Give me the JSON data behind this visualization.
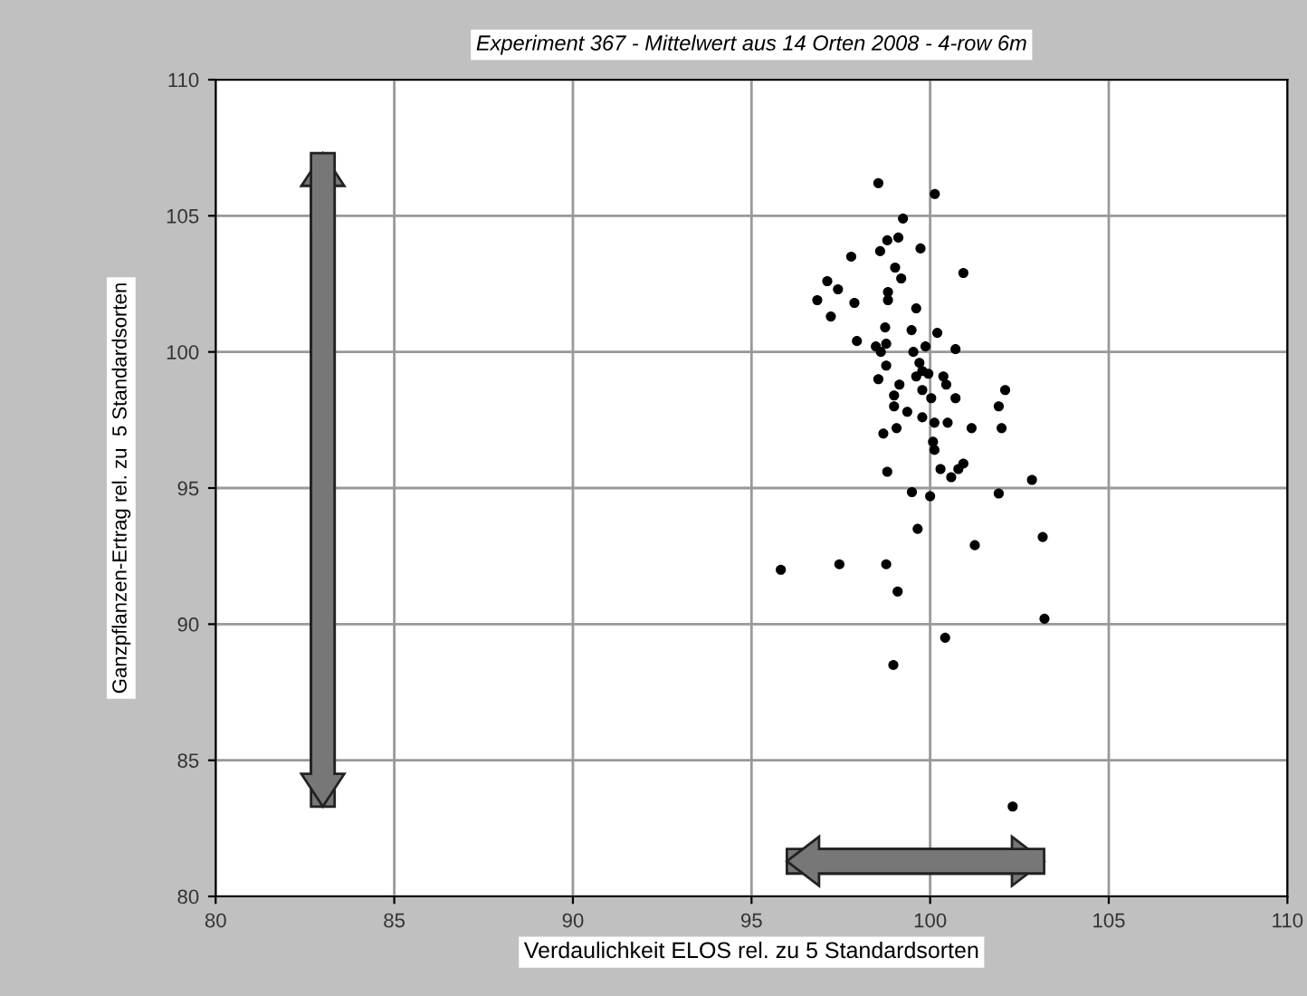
{
  "chart_data": {
    "type": "scatter",
    "title": "Experiment 367 - Mittelwert aus 14 Orten 2008 - 4-row 6m",
    "xlabel": "Verdaulichkeit ELOS rel. zu 5 Standardsorten",
    "ylabel": "Ganzpflanzen-Ertrag rel. zu  5 Standardsorten",
    "xlim": [
      80,
      110
    ],
    "ylim": [
      80,
      110
    ],
    "xticks": [
      80,
      85,
      90,
      95,
      100,
      105,
      110
    ],
    "yticks": [
      80,
      85,
      90,
      95,
      100,
      105,
      110
    ],
    "grid": true,
    "marker": "circle",
    "series": [
      {
        "color": "#000000",
        "x": [
          98.55,
          100.13,
          99.24,
          99.11,
          98.8,
          98.6,
          99.73,
          97.79,
          99.02,
          99.19,
          100.93,
          97.12,
          97.42,
          96.84,
          97.88,
          98.82,
          98.82,
          97.22,
          99.61,
          98.74,
          99.48,
          100.2,
          97.95,
          98.48,
          98.77,
          98.62,
          99.53,
          99.87,
          100.71,
          98.77,
          99.7,
          99.78,
          99.95,
          99.61,
          100.37,
          98.55,
          100.45,
          99.14,
          102.1,
          99.78,
          98.99,
          100.03,
          100.71,
          101.92,
          98.99,
          99.36,
          99.78,
          100.12,
          100.49,
          101.16,
          102.0,
          99.06,
          98.69,
          100.08,
          100.12,
          100.93,
          100.79,
          100.59,
          98.8,
          100.29,
          102.85,
          99.49,
          100.0,
          101.92,
          99.65,
          101.25,
          103.15,
          95.82,
          97.46,
          98.77,
          99.09,
          103.2,
          100.42,
          98.97,
          102.31
        ],
        "values": [
          106.2,
          105.8,
          104.9,
          104.2,
          104.1,
          103.7,
          103.8,
          103.5,
          103.1,
          102.7,
          102.9,
          102.6,
          102.3,
          101.9,
          101.8,
          102.2,
          101.9,
          101.3,
          101.6,
          100.9,
          100.8,
          100.7,
          100.4,
          100.2,
          100.3,
          100.0,
          100.0,
          100.2,
          100.1,
          99.5,
          99.6,
          99.3,
          99.2,
          99.1,
          99.1,
          99.0,
          98.8,
          98.8,
          98.6,
          98.6,
          98.4,
          98.3,
          98.3,
          98.0,
          98.0,
          97.8,
          97.6,
          97.4,
          97.4,
          97.2,
          97.2,
          97.2,
          97.0,
          96.7,
          96.4,
          95.9,
          95.7,
          95.4,
          95.6,
          95.7,
          95.3,
          94.85,
          94.7,
          94.8,
          93.5,
          92.9,
          93.2,
          92.0,
          92.2,
          92.2,
          91.2,
          90.2,
          89.5,
          88.5,
          83.3
        ]
      }
    ]
  }
}
